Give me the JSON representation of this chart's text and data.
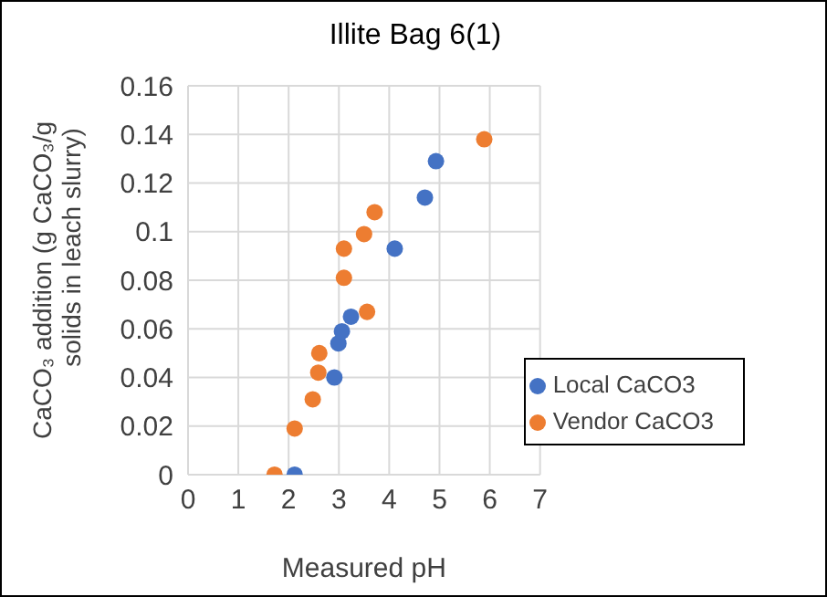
{
  "chart_data": {
    "type": "scatter",
    "title": "Illite Bag 6(1)",
    "xlabel": "Measured pH",
    "ylabel": "CaCO₃ addition (g CaCO₃/g solids in leach slurry)",
    "series": [
      {
        "name": "Local CaCO3",
        "color": "#4472c4",
        "x": [
          2.12,
          2.91,
          2.99,
          3.06,
          3.24,
          4.11,
          4.71,
          4.93
        ],
        "values": [
          0,
          0.04,
          0.054,
          0.059,
          0.065,
          0.093,
          0.114,
          0.129
        ]
      },
      {
        "name": "Vendor CaCO3",
        "color": "#ed7d31",
        "x": [
          1.72,
          2.12,
          2.48,
          2.59,
          2.61,
          3.1,
          3.1,
          3.5,
          3.71,
          3.56,
          5.89
        ],
        "values": [
          0,
          0.019,
          0.031,
          0.042,
          0.05,
          0.081,
          0.093,
          0.099,
          0.108,
          0.067,
          0.138
        ]
      }
    ],
    "xlim": [
      0,
      7
    ],
    "xticks": [
      0,
      1,
      2,
      3,
      4,
      5,
      6,
      7
    ],
    "ylim": [
      0,
      0.16
    ],
    "yticks": [
      0,
      0.02,
      0.04,
      0.06,
      0.08,
      0.1,
      0.12,
      0.14,
      0.16
    ],
    "grid": true,
    "legend": "bottom right",
    "marker": "circle"
  }
}
